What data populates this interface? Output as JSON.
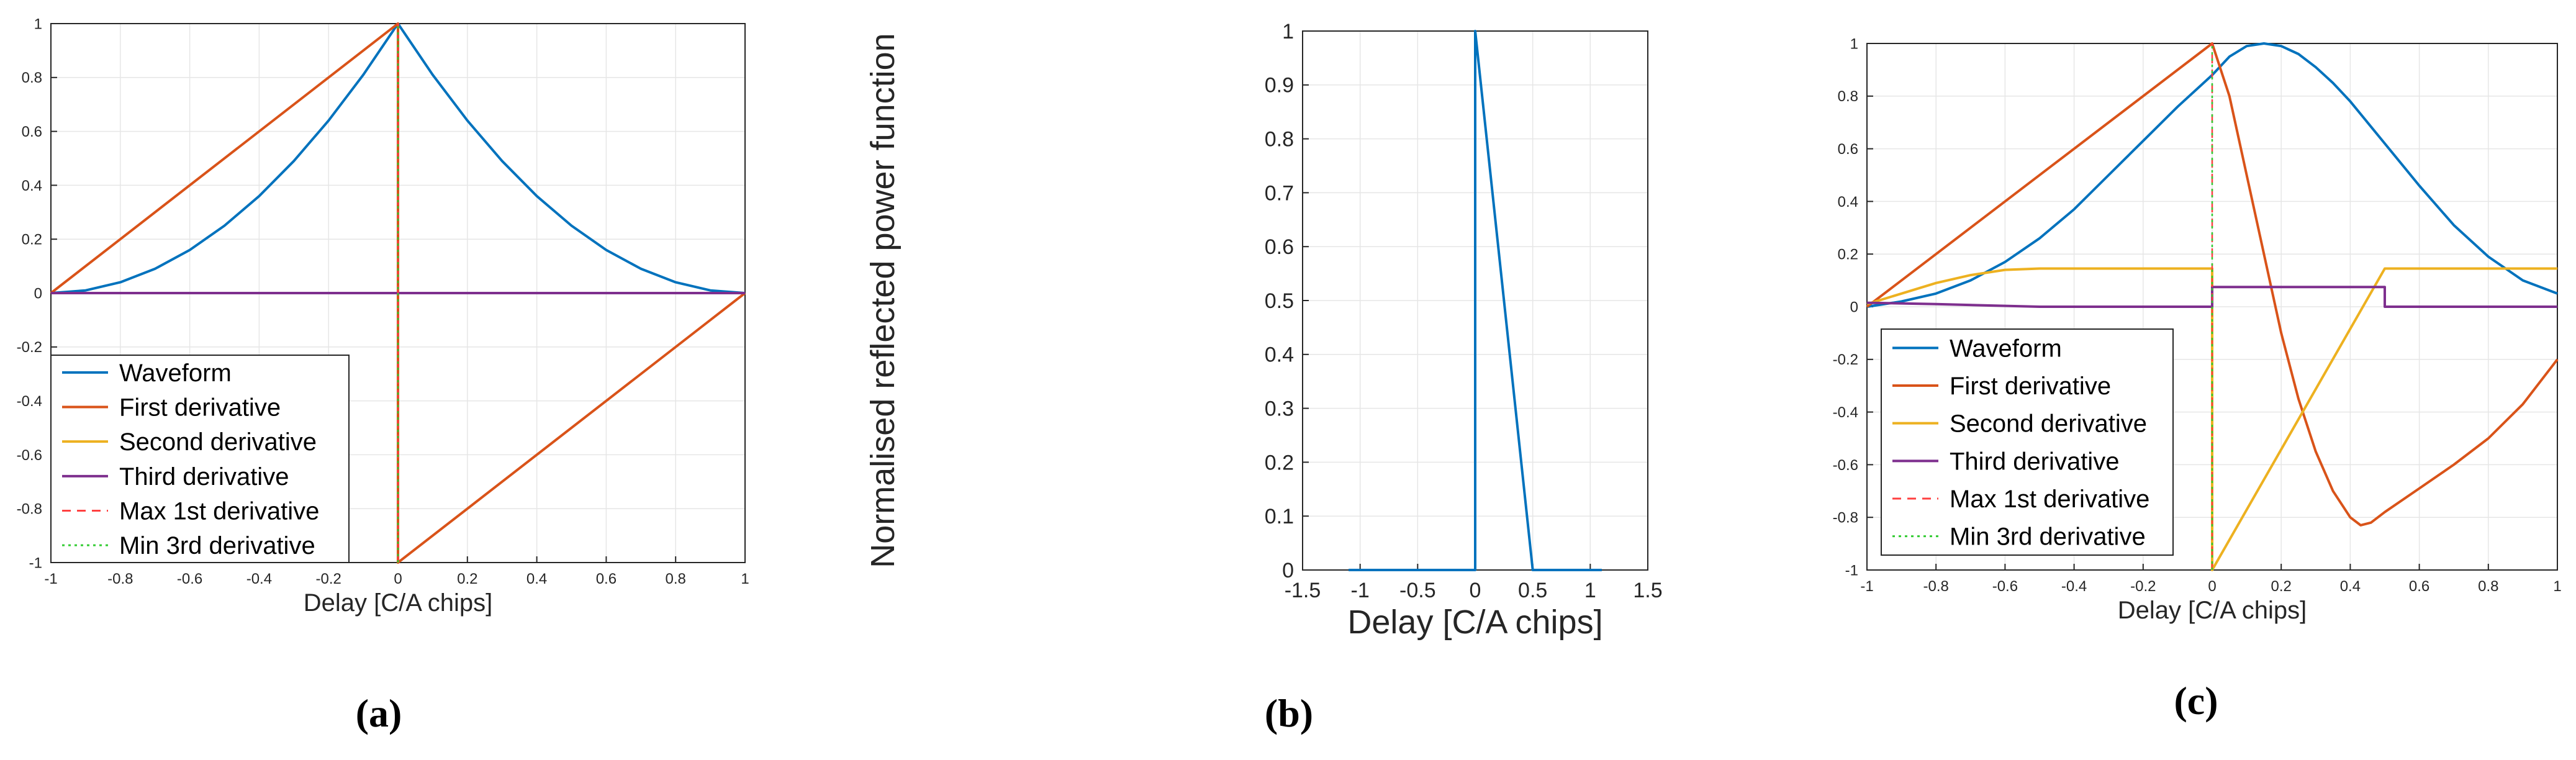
{
  "colors": {
    "waveform": "#0072BD",
    "first": "#D95319",
    "second": "#EDB120",
    "third": "#7E2F8E",
    "max1": "#FF4040",
    "min3": "#33CC33",
    "grid": "#e6e6e6",
    "axis": "#262626"
  },
  "chart_data": [
    {
      "type": "line",
      "caption": "(a)",
      "xlabel": "Delay [C/A chips]",
      "ylabel": "",
      "xlim": [
        -1,
        1
      ],
      "ylim": [
        -1,
        1
      ],
      "xticks": [
        -1,
        -0.8,
        -0.6,
        -0.4,
        -0.2,
        0,
        0.2,
        0.4,
        0.6,
        0.8,
        1
      ],
      "yticks": [
        -1,
        -0.8,
        -0.6,
        -0.4,
        -0.2,
        0,
        0.2,
        0.4,
        0.6,
        0.8,
        1
      ],
      "grid": true,
      "legend": "bottom-left",
      "series": [
        {
          "name": "Waveform",
          "color": "waveform",
          "dash": "solid",
          "x": [
            -1,
            -0.9,
            -0.8,
            -0.7,
            -0.6,
            -0.5,
            -0.4,
            -0.3,
            -0.2,
            -0.1,
            0,
            0.1,
            0.2,
            0.3,
            0.4,
            0.5,
            0.6,
            0.7,
            0.8,
            0.9,
            1
          ],
          "y": [
            0,
            0.01,
            0.04,
            0.09,
            0.16,
            0.25,
            0.36,
            0.49,
            0.64,
            0.81,
            1,
            0.81,
            0.64,
            0.49,
            0.36,
            0.25,
            0.16,
            0.09,
            0.04,
            0.01,
            0
          ]
        },
        {
          "name": "First derivative",
          "color": "first",
          "dash": "solid",
          "x": [
            -1,
            0,
            0,
            1
          ],
          "y": [
            0,
            1,
            -1,
            0
          ]
        },
        {
          "name": "Second derivative",
          "color": "second",
          "dash": "solid",
          "x": [
            -1,
            1
          ],
          "y": [
            0,
            0
          ]
        },
        {
          "name": "Third derivative",
          "color": "third",
          "dash": "solid",
          "x": [
            -1,
            1
          ],
          "y": [
            0,
            0
          ]
        },
        {
          "name": "Max 1st derivative",
          "color": "max1",
          "dash": "dashed",
          "x": [
            0,
            0
          ],
          "y": [
            -1,
            1
          ]
        },
        {
          "name": "Min 3rd derivative",
          "color": "min3",
          "dash": "dotted",
          "x": [
            0,
            0
          ],
          "y": [
            -1,
            1
          ]
        }
      ]
    },
    {
      "type": "line",
      "caption": "(b)",
      "xlabel": "Delay [C/A chips]",
      "ylabel": "Normalised reflected power function",
      "xlim": [
        -1.5,
        1.5
      ],
      "ylim": [
        0,
        1
      ],
      "xticks": [
        -1.5,
        -1,
        -0.5,
        0,
        0.5,
        1,
        1.5
      ],
      "yticks": [
        0,
        0.1,
        0.2,
        0.3,
        0.4,
        0.5,
        0.6,
        0.7,
        0.8,
        0.9,
        1
      ],
      "grid": true,
      "series": [
        {
          "color": "waveform",
          "dash": "solid",
          "x": [
            -1.1,
            0,
            0,
            0.5,
            1.1
          ],
          "y": [
            0,
            0,
            1,
            0,
            0
          ]
        }
      ]
    },
    {
      "type": "line",
      "caption": "(c)",
      "xlabel": "Delay [C/A chips]",
      "ylabel": "",
      "xlim": [
        -1,
        1
      ],
      "ylim": [
        -1,
        1
      ],
      "xticks": [
        -1,
        -0.8,
        -0.6,
        -0.4,
        -0.2,
        0,
        0.2,
        0.4,
        0.6,
        0.8,
        1
      ],
      "yticks": [
        -1,
        -0.8,
        -0.6,
        -0.4,
        -0.2,
        0,
        0.2,
        0.4,
        0.6,
        0.8,
        1
      ],
      "grid": true,
      "legend": "bottom-left",
      "series": [
        {
          "name": "Waveform",
          "color": "waveform",
          "dash": "solid",
          "x": [
            -1,
            -0.9,
            -0.8,
            -0.7,
            -0.6,
            -0.5,
            -0.4,
            -0.3,
            -0.2,
            -0.1,
            0,
            0.05,
            0.1,
            0.15,
            0.2,
            0.25,
            0.3,
            0.35,
            0.4,
            0.5,
            0.6,
            0.7,
            0.8,
            0.9,
            1
          ],
          "y": [
            0,
            0.02,
            0.05,
            0.1,
            0.17,
            0.26,
            0.37,
            0.5,
            0.63,
            0.76,
            0.88,
            0.95,
            0.99,
            1,
            0.99,
            0.96,
            0.91,
            0.85,
            0.78,
            0.62,
            0.46,
            0.31,
            0.19,
            0.1,
            0.05
          ]
        },
        {
          "name": "First derivative",
          "color": "first",
          "dash": "solid",
          "x": [
            -1,
            0,
            0.05,
            0.1,
            0.15,
            0.2,
            0.25,
            0.3,
            0.35,
            0.4,
            0.43,
            0.46,
            0.5,
            0.6,
            0.7,
            0.8,
            0.9,
            1
          ],
          "y": [
            0,
            1,
            0.8,
            0.5,
            0.2,
            -0.1,
            -0.35,
            -0.55,
            -0.7,
            -0.8,
            -0.83,
            -0.82,
            -0.78,
            -0.69,
            -0.6,
            -0.5,
            -0.37,
            -0.2
          ]
        },
        {
          "name": "Second derivative",
          "color": "second",
          "dash": "solid",
          "x": [
            -1,
            -0.9,
            -0.8,
            -0.7,
            -0.6,
            -0.5,
            0,
            0,
            0.5,
            1
          ],
          "y": [
            0.01,
            0.05,
            0.09,
            0.12,
            0.14,
            0.145,
            0.145,
            -1,
            0.145,
            0.145
          ]
        },
        {
          "name": "Third derivative",
          "color": "third",
          "dash": "solid",
          "x": [
            -1,
            -0.8,
            -0.5,
            0,
            0,
            0.5,
            0.5,
            1
          ],
          "y": [
            0.015,
            0.01,
            0,
            0,
            0.075,
            0.075,
            0,
            0
          ]
        },
        {
          "name": "Max 1st derivative",
          "color": "max1",
          "dash": "dashed",
          "x": [
            0,
            0
          ],
          "y": [
            -1,
            1
          ]
        },
        {
          "name": "Min 3rd derivative",
          "color": "min3",
          "dash": "dotted",
          "x": [
            0,
            0
          ],
          "y": [
            -1,
            1
          ]
        }
      ]
    }
  ]
}
